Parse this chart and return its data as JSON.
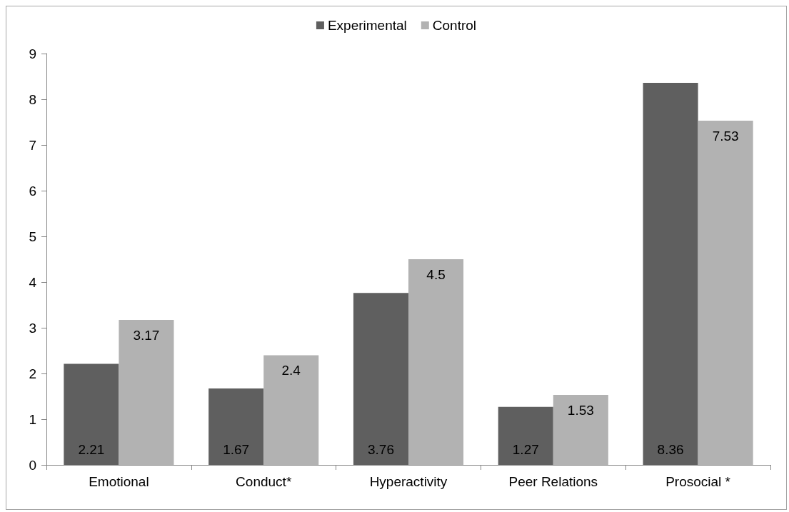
{
  "chart_data": {
    "type": "bar",
    "categories": [
      "Emotional",
      "Conduct*",
      "Hyperactivity",
      "Peer Relations",
      "Prosocial *"
    ],
    "series": [
      {
        "name": "Experimental",
        "color": "#5f5f5f",
        "values": [
          2.21,
          1.67,
          3.76,
          1.27,
          8.36
        ]
      },
      {
        "name": "Control",
        "color": "#b2b2b2",
        "values": [
          3.17,
          2.4,
          4.5,
          1.53,
          7.53
        ]
      }
    ],
    "ylim": [
      0,
      9
    ],
    "yticks": [
      0,
      1,
      2,
      3,
      4,
      5,
      6,
      7,
      8,
      9
    ],
    "grid": false,
    "legend": "top",
    "data_labels": true
  }
}
